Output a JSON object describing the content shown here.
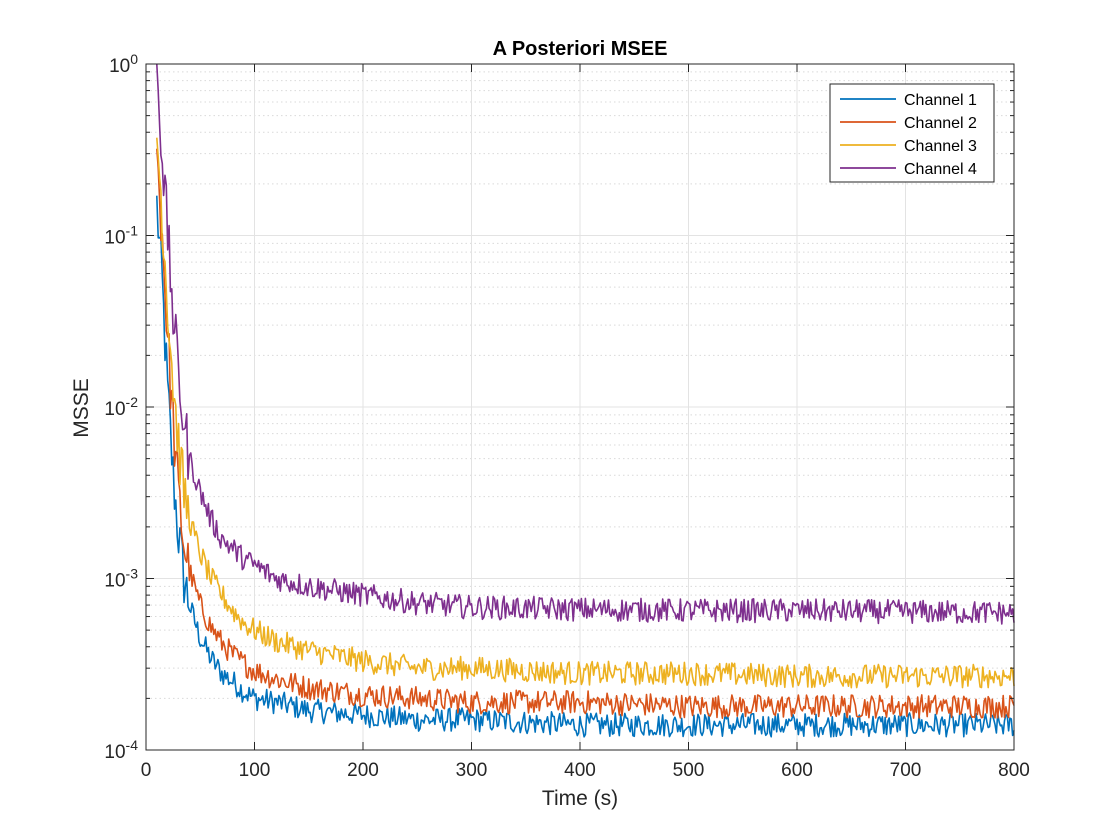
{
  "chart_data": {
    "type": "line",
    "title": "A Posteriori MSEE",
    "xlabel": "Time (s)",
    "ylabel": "MSSE",
    "xlim": [
      0,
      800
    ],
    "ylim": [
      0.0001,
      1
    ],
    "yscale": "log",
    "grid": true,
    "minor_grid": true,
    "legend_position": "top-right",
    "x_ticks": [
      0,
      100,
      200,
      300,
      400,
      500,
      600,
      700,
      800
    ],
    "x_tick_labels": [
      "0",
      "100",
      "200",
      "300",
      "400",
      "500",
      "600",
      "700",
      "800"
    ],
    "y_ticks": [
      0.0001,
      0.001,
      0.01,
      0.1,
      1
    ],
    "y_tick_labels": [
      {
        "base": "10",
        "exp": "-4"
      },
      {
        "base": "10",
        "exp": "-3"
      },
      {
        "base": "10",
        "exp": "-2"
      },
      {
        "base": "10",
        "exp": "-1"
      },
      {
        "base": "10",
        "exp": "0"
      }
    ],
    "x": [
      10,
      15,
      20,
      25,
      30,
      35,
      40,
      50,
      60,
      70,
      80,
      90,
      100,
      120,
      150,
      200,
      250,
      300,
      400,
      500,
      600,
      700,
      800
    ],
    "series": [
      {
        "name": "Channel 1",
        "color": "#0072BD",
        "values": [
          0.15,
          0.05,
          0.012,
          0.004,
          0.0018,
          0.001,
          0.0007,
          0.00045,
          0.00034,
          0.00028,
          0.00025,
          0.00022,
          0.0002,
          0.00019,
          0.00017,
          0.00016,
          0.00015,
          0.00015,
          0.00014,
          0.00014,
          0.00014,
          0.00014,
          0.00014
        ]
      },
      {
        "name": "Channel 2",
        "color": "#D95319",
        "values": [
          0.3,
          0.1,
          0.025,
          0.008,
          0.003,
          0.0016,
          0.0011,
          0.0007,
          0.00052,
          0.00042,
          0.00036,
          0.00032,
          0.00029,
          0.00026,
          0.00023,
          0.00021,
          0.0002,
          0.00019,
          0.00019,
          0.00018,
          0.00018,
          0.00018,
          0.00018
        ]
      },
      {
        "name": "Channel 3",
        "color": "#EDB120",
        "values": [
          0.4,
          0.13,
          0.04,
          0.014,
          0.006,
          0.0032,
          0.0022,
          0.0014,
          0.001,
          0.0008,
          0.00065,
          0.00055,
          0.0005,
          0.00043,
          0.00038,
          0.00033,
          0.0003,
          0.0003,
          0.00028,
          0.00028,
          0.00027,
          0.00027,
          0.00027
        ]
      },
      {
        "name": "Channel 4",
        "color": "#7E2F8E",
        "values": [
          1,
          0.3,
          0.1,
          0.035,
          0.015,
          0.008,
          0.005,
          0.0032,
          0.0022,
          0.0017,
          0.0015,
          0.0013,
          0.0012,
          0.001,
          0.0009,
          0.0008,
          0.00072,
          0.00068,
          0.00066,
          0.00065,
          0.00065,
          0.00064,
          0.00063
        ]
      }
    ]
  }
}
